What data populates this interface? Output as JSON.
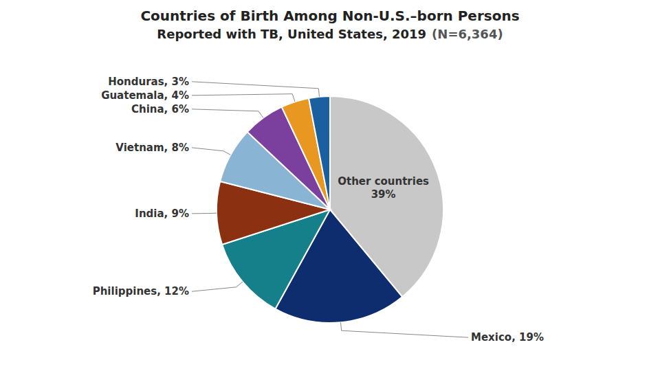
{
  "chart_data": {
    "type": "pie",
    "title": "Countries of Birth Among Non-U.S.–born Persons",
    "subtitle": "Reported with TB, United States, 2019",
    "annotations": [
      "(N=6,364)"
    ],
    "categories": [
      "Other countries",
      "Mexico",
      "Philippines",
      "India",
      "Vietnam",
      "China",
      "Guatemala",
      "Honduras"
    ],
    "values": [
      39,
      19,
      12,
      9,
      8,
      6,
      4,
      3
    ],
    "value_labels": [
      "39%",
      "19%",
      "12%",
      "9%",
      "8%",
      "6%",
      "4%",
      "3%"
    ],
    "colors": [
      "#c8c8c8",
      "#0d2d6e",
      "#157f8a",
      "#8b3010",
      "#8ab4d4",
      "#7b3f9e",
      "#e89820",
      "#1a5fa0"
    ],
    "data_labels": true
  }
}
